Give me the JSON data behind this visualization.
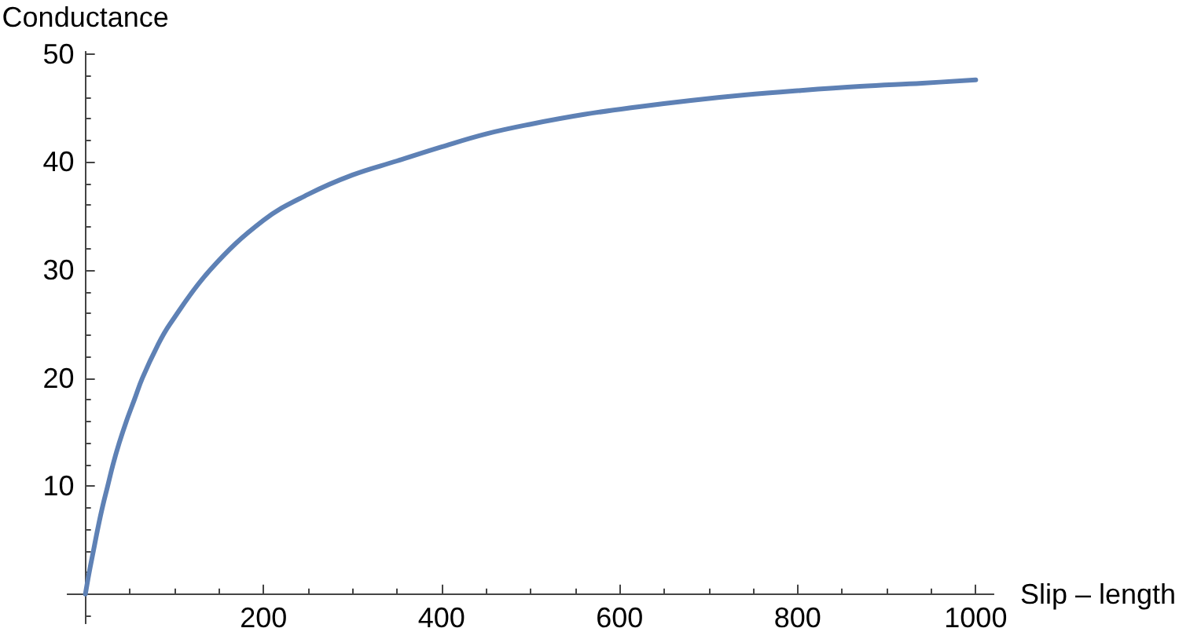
{
  "chart_data": {
    "type": "line",
    "xlabel": "Slip – length",
    "ylabel": "Conductance",
    "x": [
      0,
      4,
      9,
      14,
      19,
      25,
      31,
      38,
      46,
      55,
      64,
      81,
      95,
      140,
      200,
      250,
      300,
      350,
      400,
      450,
      500,
      560,
      620,
      680,
      740,
      800,
      870,
      940,
      1000
    ],
    "values": [
      0,
      1.9,
      4,
      6.1,
      8,
      10,
      12,
      14,
      16,
      18,
      20,
      23,
      25,
      30,
      34.6,
      37,
      38.8,
      40.1,
      41.4,
      42.6,
      43.5,
      44.4,
      45.1,
      45.7,
      46.2,
      46.6,
      47,
      47.3,
      47.6
    ],
    "color": "#5e81b5",
    "line_style": "solid",
    "xlim": [
      -20,
      1020
    ],
    "ylim": [
      -2.7,
      50.2
    ],
    "xticks": [
      {
        "value": 50,
        "label": null
      },
      {
        "value": 100,
        "label": null
      },
      {
        "value": 150,
        "label": null
      },
      200,
      {
        "value": 250,
        "label": null
      },
      {
        "value": 300,
        "label": null
      },
      {
        "value": 350,
        "label": null
      },
      400,
      {
        "value": 450,
        "label": null
      },
      {
        "value": 500,
        "label": null
      },
      {
        "value": 550,
        "label": null
      },
      600,
      {
        "value": 650,
        "label": null
      },
      {
        "value": 700,
        "label": null
      },
      {
        "value": 750,
        "label": null
      },
      800,
      {
        "value": 850,
        "label": null
      },
      {
        "value": 900,
        "label": null
      },
      {
        "value": 950,
        "label": null
      },
      1000
    ],
    "yticks": [
      {
        "value": -2,
        "label": null
      },
      {
        "value": 2,
        "label": null
      },
      {
        "value": 4,
        "label": null
      },
      {
        "value": 6,
        "label": null
      },
      {
        "value": 8,
        "label": null
      },
      10,
      {
        "value": 12,
        "label": null
      },
      {
        "value": 14,
        "label": null
      },
      {
        "value": 16,
        "label": null
      },
      {
        "value": 18,
        "label": null
      },
      20,
      {
        "value": 22,
        "label": null
      },
      {
        "value": 24,
        "label": null
      },
      {
        "value": 26,
        "label": null
      },
      {
        "value": 28,
        "label": null
      },
      30,
      {
        "value": 32,
        "label": null
      },
      {
        "value": 34,
        "label": null
      },
      {
        "value": 36,
        "label": null
      },
      {
        "value": 38,
        "label": null
      },
      40,
      {
        "value": 42,
        "label": null
      },
      {
        "value": 44,
        "label": null
      },
      {
        "value": 46,
        "label": null
      },
      {
        "value": 48,
        "label": null
      },
      50
    ]
  }
}
